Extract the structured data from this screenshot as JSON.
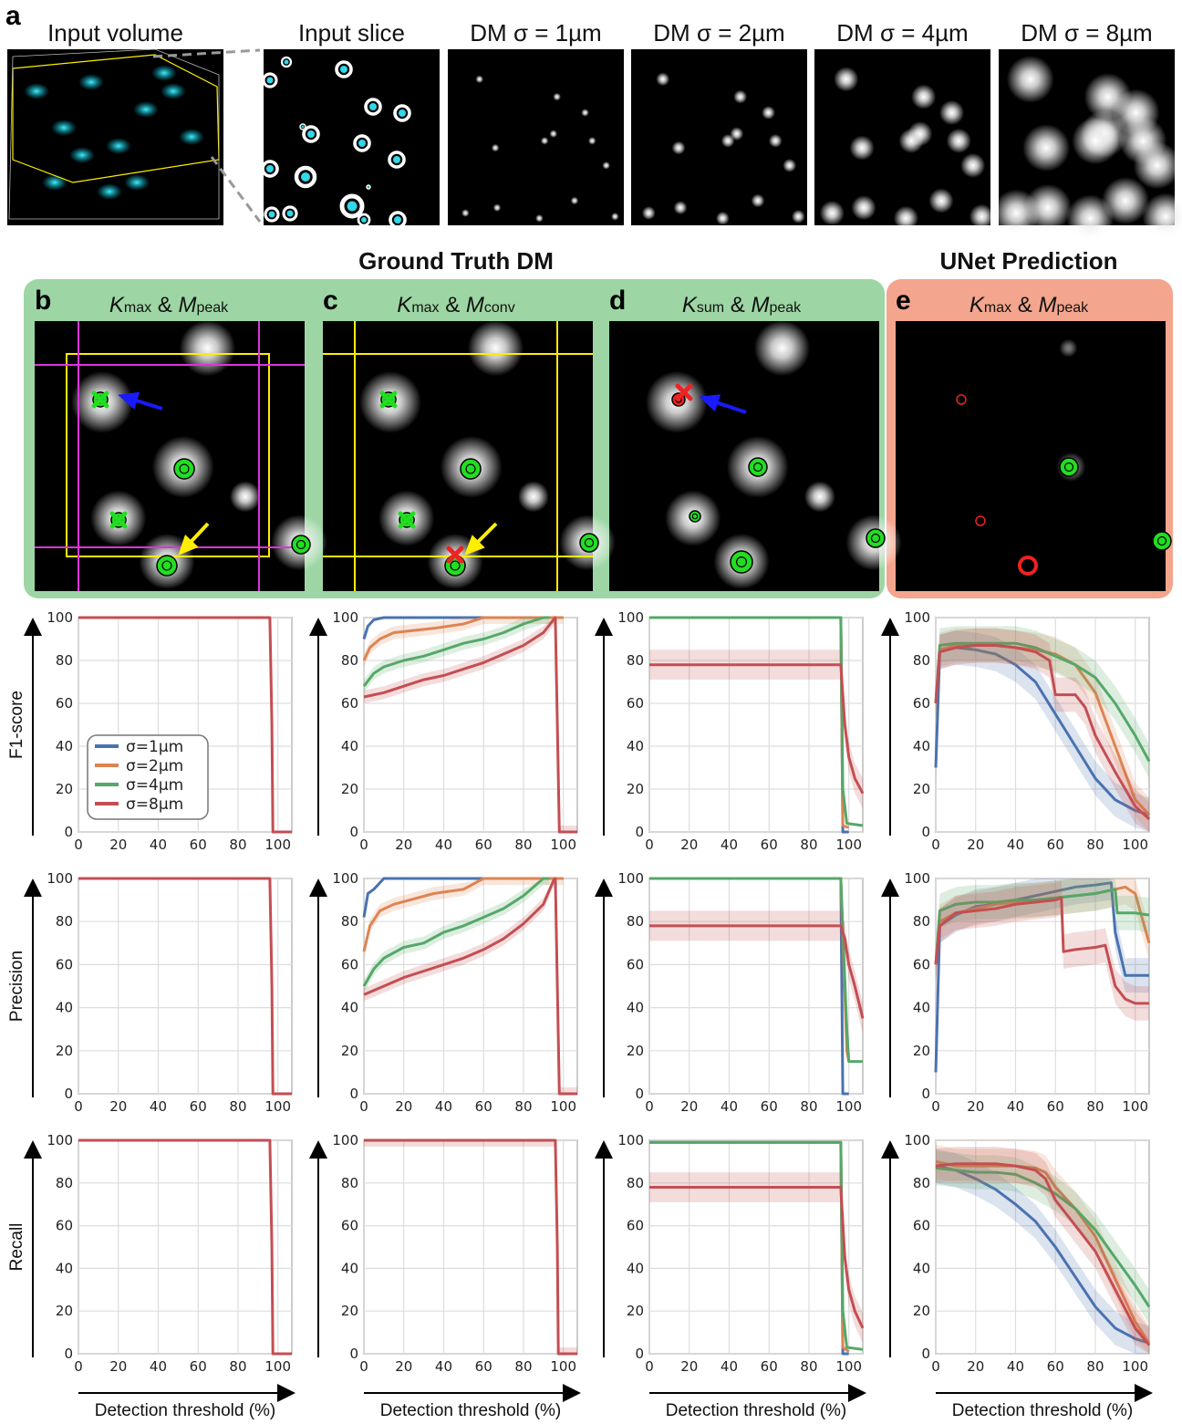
{
  "panel_a": {
    "letter": "a",
    "titles": [
      "Input volume",
      "Input slice",
      "DM σ = 1µm",
      "DM σ = 2µm",
      "DM σ = 4µm",
      "DM σ = 8µm"
    ]
  },
  "sections": {
    "ground_truth": "Ground Truth DM",
    "unet": "UNet Prediction"
  },
  "panels": [
    {
      "letter": "b",
      "k_main": "K",
      "k_sub": "max",
      "amp": " & ",
      "m_main": "M",
      "m_sub": "peak"
    },
    {
      "letter": "c",
      "k_main": "K",
      "k_sub": "max",
      "amp": " & ",
      "m_main": "M",
      "m_sub": "conv"
    },
    {
      "letter": "d",
      "k_main": "K",
      "k_sub": "sum",
      "amp": " & ",
      "m_main": "M",
      "m_sub": "peak"
    },
    {
      "letter": "e",
      "k_main": "K",
      "k_sub": "max",
      "amp": " & ",
      "m_main": "M",
      "m_sub": "peak"
    }
  ],
  "colors": {
    "sigma1": "#4a72b0",
    "sigma2": "#dd8452",
    "sigma4": "#55a868",
    "sigma8": "#c44e52",
    "gt_bg": "#9dd6a4",
    "unet_bg": "#f4a58d",
    "marker_green": "#22dd22",
    "marker_red": "#ee2222",
    "arrow_blue": "#1a1aff",
    "arrow_yellow": "#ffee00",
    "box_yellow": "#ffee00",
    "box_magenta": "#dd33dd"
  },
  "axis": {
    "ylabels": [
      "F1-score",
      "Precision",
      "Recall"
    ],
    "xlabel": "Detection threshold (%)",
    "xticks": [
      "0",
      "20",
      "40",
      "60",
      "80",
      "100"
    ],
    "yticks": [
      "0",
      "20",
      "40",
      "60",
      "80",
      "100"
    ]
  },
  "legend": [
    "σ=1µm",
    "σ=2µm",
    "σ=4µm",
    "σ=8µm"
  ],
  "chart_data": [
    {
      "type": "line",
      "panel": "b",
      "metric": "F1-score",
      "xlim": [
        0,
        107
      ],
      "ylim": [
        0,
        100
      ],
      "grid": true,
      "series": [
        {
          "name": "σ=8µm",
          "x": [
            0,
            96,
            97,
            97.5,
            107
          ],
          "y": [
            100,
            100,
            50,
            0,
            0
          ]
        }
      ]
    },
    {
      "type": "line",
      "panel": "c",
      "metric": "F1-score",
      "xlim": [
        0,
        107
      ],
      "ylim": [
        0,
        100
      ],
      "grid": true,
      "series": [
        {
          "name": "σ=1µm",
          "x": [
            0,
            2,
            5,
            10,
            100
          ],
          "y": [
            90,
            96,
            99,
            100,
            100
          ]
        },
        {
          "name": "σ=2µm",
          "x": [
            0,
            3,
            8,
            15,
            35,
            50,
            60,
            100
          ],
          "y": [
            80,
            86,
            90,
            93,
            95,
            97,
            100,
            100
          ]
        },
        {
          "name": "σ=4µm",
          "x": [
            0,
            5,
            10,
            20,
            30,
            40,
            50,
            60,
            70,
            80,
            90,
            93
          ],
          "y": [
            68,
            74,
            77,
            80,
            82,
            85,
            88,
            90,
            93,
            97,
            100,
            100
          ]
        },
        {
          "name": "σ=8µm",
          "x": [
            0,
            10,
            20,
            30,
            40,
            50,
            60,
            70,
            80,
            90,
            95,
            96,
            97,
            98,
            107
          ],
          "y": [
            63,
            65,
            68,
            71,
            73,
            76,
            79,
            83,
            87,
            93,
            99,
            100,
            50,
            0,
            0
          ]
        }
      ]
    },
    {
      "type": "line",
      "panel": "d",
      "metric": "F1-score",
      "xlim": [
        0,
        107
      ],
      "ylim": [
        0,
        100
      ],
      "grid": true,
      "series": [
        {
          "name": "σ=1µm",
          "x": [
            0,
            96,
            97,
            100
          ],
          "y": [
            100,
            100,
            0,
            0
          ]
        },
        {
          "name": "σ=2µm",
          "x": [
            0,
            96,
            97,
            100
          ],
          "y": [
            100,
            100,
            3,
            2
          ]
        },
        {
          "name": "σ=4µm",
          "x": [
            0,
            96,
            97,
            99,
            107
          ],
          "y": [
            100,
            100,
            20,
            4,
            3
          ]
        },
        {
          "name": "σ=8µm",
          "x": [
            0,
            96,
            98,
            100,
            103,
            107
          ],
          "y": [
            78,
            78,
            50,
            35,
            25,
            18
          ]
        }
      ]
    },
    {
      "type": "line",
      "panel": "e",
      "metric": "F1-score",
      "xlim": [
        0,
        107
      ],
      "ylim": [
        0,
        100
      ],
      "grid": true,
      "series": [
        {
          "name": "σ=1µm",
          "x": [
            0,
            2,
            10,
            20,
            30,
            40,
            50,
            60,
            70,
            80,
            90,
            100,
            107
          ],
          "y": [
            30,
            84,
            86,
            85,
            83,
            78,
            70,
            55,
            40,
            25,
            15,
            10,
            8
          ]
        },
        {
          "name": "σ=2µm",
          "x": [
            0,
            2,
            10,
            20,
            30,
            40,
            50,
            60,
            70,
            80,
            90,
            100,
            107
          ],
          "y": [
            60,
            85,
            87,
            87,
            87,
            86,
            85,
            83,
            78,
            65,
            40,
            15,
            8
          ]
        },
        {
          "name": "σ=4µm",
          "x": [
            0,
            2,
            10,
            20,
            30,
            40,
            50,
            60,
            70,
            80,
            90,
            100,
            107
          ],
          "y": [
            60,
            87,
            88,
            88,
            88,
            88,
            86,
            82,
            78,
            72,
            60,
            45,
            33
          ]
        },
        {
          "name": "σ=8µm",
          "x": [
            0,
            2,
            10,
            20,
            30,
            40,
            50,
            57,
            60,
            70,
            75,
            80,
            90,
            100,
            107
          ],
          "y": [
            60,
            84,
            86,
            87,
            87,
            86,
            84,
            80,
            64,
            64,
            58,
            45,
            28,
            12,
            6
          ]
        }
      ]
    },
    {
      "type": "line",
      "panel": "b",
      "metric": "Precision",
      "xlim": [
        0,
        107
      ],
      "ylim": [
        0,
        100
      ],
      "grid": true,
      "series": [
        {
          "name": "σ=8µm",
          "x": [
            0,
            96,
            97,
            97.5,
            107
          ],
          "y": [
            100,
            100,
            50,
            0,
            0
          ]
        }
      ]
    },
    {
      "type": "line",
      "panel": "c",
      "metric": "Precision",
      "xlim": [
        0,
        107
      ],
      "ylim": [
        0,
        100
      ],
      "grid": true,
      "series": [
        {
          "name": "σ=1µm",
          "x": [
            0,
            2,
            5,
            10,
            100
          ],
          "y": [
            82,
            93,
            95,
            100,
            100
          ]
        },
        {
          "name": "σ=2µm",
          "x": [
            0,
            3,
            8,
            15,
            35,
            50,
            60,
            100
          ],
          "y": [
            66,
            78,
            85,
            88,
            93,
            95,
            100,
            100
          ]
        },
        {
          "name": "σ=4µm",
          "x": [
            0,
            5,
            10,
            20,
            30,
            40,
            50,
            60,
            70,
            80,
            90,
            93
          ],
          "y": [
            50,
            58,
            63,
            68,
            70,
            75,
            78,
            82,
            86,
            92,
            100,
            100
          ]
        },
        {
          "name": "σ=8µm",
          "x": [
            0,
            10,
            20,
            30,
            40,
            50,
            60,
            70,
            80,
            90,
            95,
            96,
            97,
            98,
            107
          ],
          "y": [
            46,
            50,
            54,
            57,
            60,
            63,
            67,
            72,
            79,
            88,
            99,
            100,
            50,
            0,
            0
          ]
        }
      ]
    },
    {
      "type": "line",
      "panel": "d",
      "metric": "Precision",
      "xlim": [
        0,
        107
      ],
      "ylim": [
        0,
        100
      ],
      "grid": true,
      "series": [
        {
          "name": "σ=1µm",
          "x": [
            0,
            96,
            97,
            100
          ],
          "y": [
            100,
            100,
            0,
            0
          ]
        },
        {
          "name": "σ=2µm",
          "x": [
            0,
            96,
            99,
            100
          ],
          "y": [
            100,
            100,
            20,
            15
          ]
        },
        {
          "name": "σ=4µm",
          "x": [
            0,
            96,
            99,
            100,
            107
          ],
          "y": [
            100,
            100,
            30,
            15,
            15
          ]
        },
        {
          "name": "σ=8µm",
          "x": [
            0,
            96,
            98,
            100,
            103,
            107
          ],
          "y": [
            78,
            78,
            72,
            60,
            50,
            35
          ]
        }
      ]
    },
    {
      "type": "line",
      "panel": "e",
      "metric": "Precision",
      "xlim": [
        0,
        107
      ],
      "ylim": [
        0,
        100
      ],
      "grid": true,
      "series": [
        {
          "name": "σ=1µm",
          "x": [
            0,
            2,
            10,
            20,
            30,
            40,
            50,
            60,
            70,
            80,
            88,
            90,
            95,
            107
          ],
          "y": [
            10,
            78,
            83,
            87,
            88,
            90,
            92,
            94,
            96,
            97,
            98,
            75,
            55,
            55
          ]
        },
        {
          "name": "σ=2µm",
          "x": [
            0,
            2,
            10,
            20,
            30,
            40,
            50,
            60,
            70,
            80,
            90,
            95,
            100,
            107
          ],
          "y": [
            60,
            80,
            84,
            86,
            88,
            89,
            90,
            91,
            92,
            93,
            95,
            96,
            93,
            70
          ]
        },
        {
          "name": "σ=4µm",
          "x": [
            0,
            2,
            10,
            20,
            30,
            40,
            50,
            60,
            70,
            80,
            90,
            91,
            100,
            107
          ],
          "y": [
            60,
            85,
            88,
            89,
            89,
            90,
            90,
            91,
            92,
            93,
            95,
            84,
            84,
            83
          ]
        },
        {
          "name": "σ=8µm",
          "x": [
            0,
            2,
            10,
            20,
            30,
            40,
            50,
            60,
            63,
            64,
            70,
            80,
            85,
            90,
            95,
            100,
            107
          ],
          "y": [
            60,
            78,
            84,
            85,
            86,
            88,
            89,
            90,
            91,
            66,
            67,
            68,
            69,
            50,
            44,
            42,
            42
          ]
        }
      ]
    },
    {
      "type": "line",
      "panel": "b",
      "metric": "Recall",
      "xlim": [
        0,
        107
      ],
      "ylim": [
        0,
        100
      ],
      "grid": true,
      "series": [
        {
          "name": "σ=8µm",
          "x": [
            0,
            96,
            97,
            97.5,
            107
          ],
          "y": [
            100,
            100,
            50,
            0,
            0
          ]
        }
      ]
    },
    {
      "type": "line",
      "panel": "c",
      "metric": "Recall",
      "xlim": [
        0,
        107
      ],
      "ylim": [
        0,
        100
      ],
      "grid": true,
      "series": [
        {
          "name": "σ=8µm",
          "x": [
            0,
            96,
            97,
            97.5,
            107
          ],
          "y": [
            100,
            100,
            50,
            0,
            0
          ]
        }
      ]
    },
    {
      "type": "line",
      "panel": "d",
      "metric": "Recall",
      "xlim": [
        0,
        107
      ],
      "ylim": [
        0,
        100
      ],
      "grid": true,
      "series": [
        {
          "name": "σ=1µm",
          "x": [
            0,
            96,
            97,
            100
          ],
          "y": [
            99,
            99,
            0,
            0
          ]
        },
        {
          "name": "σ=2µm",
          "x": [
            0,
            96,
            97,
            100
          ],
          "y": [
            99,
            99,
            3,
            1
          ]
        },
        {
          "name": "σ=4µm",
          "x": [
            0,
            96,
            97,
            99,
            107
          ],
          "y": [
            99,
            99,
            20,
            3,
            2
          ]
        },
        {
          "name": "σ=8µm",
          "x": [
            0,
            96,
            98,
            100,
            103,
            107
          ],
          "y": [
            78,
            78,
            45,
            30,
            20,
            12
          ]
        }
      ]
    },
    {
      "type": "line",
      "panel": "e",
      "metric": "Recall",
      "xlim": [
        0,
        107
      ],
      "ylim": [
        0,
        100
      ],
      "grid": true,
      "series": [
        {
          "name": "σ=1µm",
          "x": [
            0,
            10,
            20,
            30,
            40,
            50,
            60,
            70,
            80,
            90,
            100,
            107
          ],
          "y": [
            88,
            86,
            82,
            77,
            70,
            62,
            50,
            36,
            22,
            12,
            7,
            5
          ]
        },
        {
          "name": "σ=2µm",
          "x": [
            0,
            10,
            20,
            30,
            40,
            50,
            55,
            60,
            70,
            80,
            90,
            100,
            107
          ],
          "y": [
            90,
            88,
            88,
            88,
            88,
            87,
            85,
            78,
            68,
            55,
            35,
            15,
            5
          ]
        },
        {
          "name": "σ=4µm",
          "x": [
            0,
            10,
            20,
            30,
            40,
            50,
            60,
            70,
            80,
            90,
            100,
            107
          ],
          "y": [
            87,
            86,
            85,
            85,
            84,
            80,
            75,
            68,
            58,
            45,
            32,
            22
          ]
        },
        {
          "name": "σ=8µm",
          "x": [
            0,
            10,
            20,
            30,
            40,
            50,
            55,
            60,
            70,
            80,
            90,
            100,
            107
          ],
          "y": [
            88,
            89,
            89,
            89,
            88,
            86,
            82,
            72,
            60,
            48,
            30,
            12,
            4
          ]
        }
      ]
    }
  ]
}
